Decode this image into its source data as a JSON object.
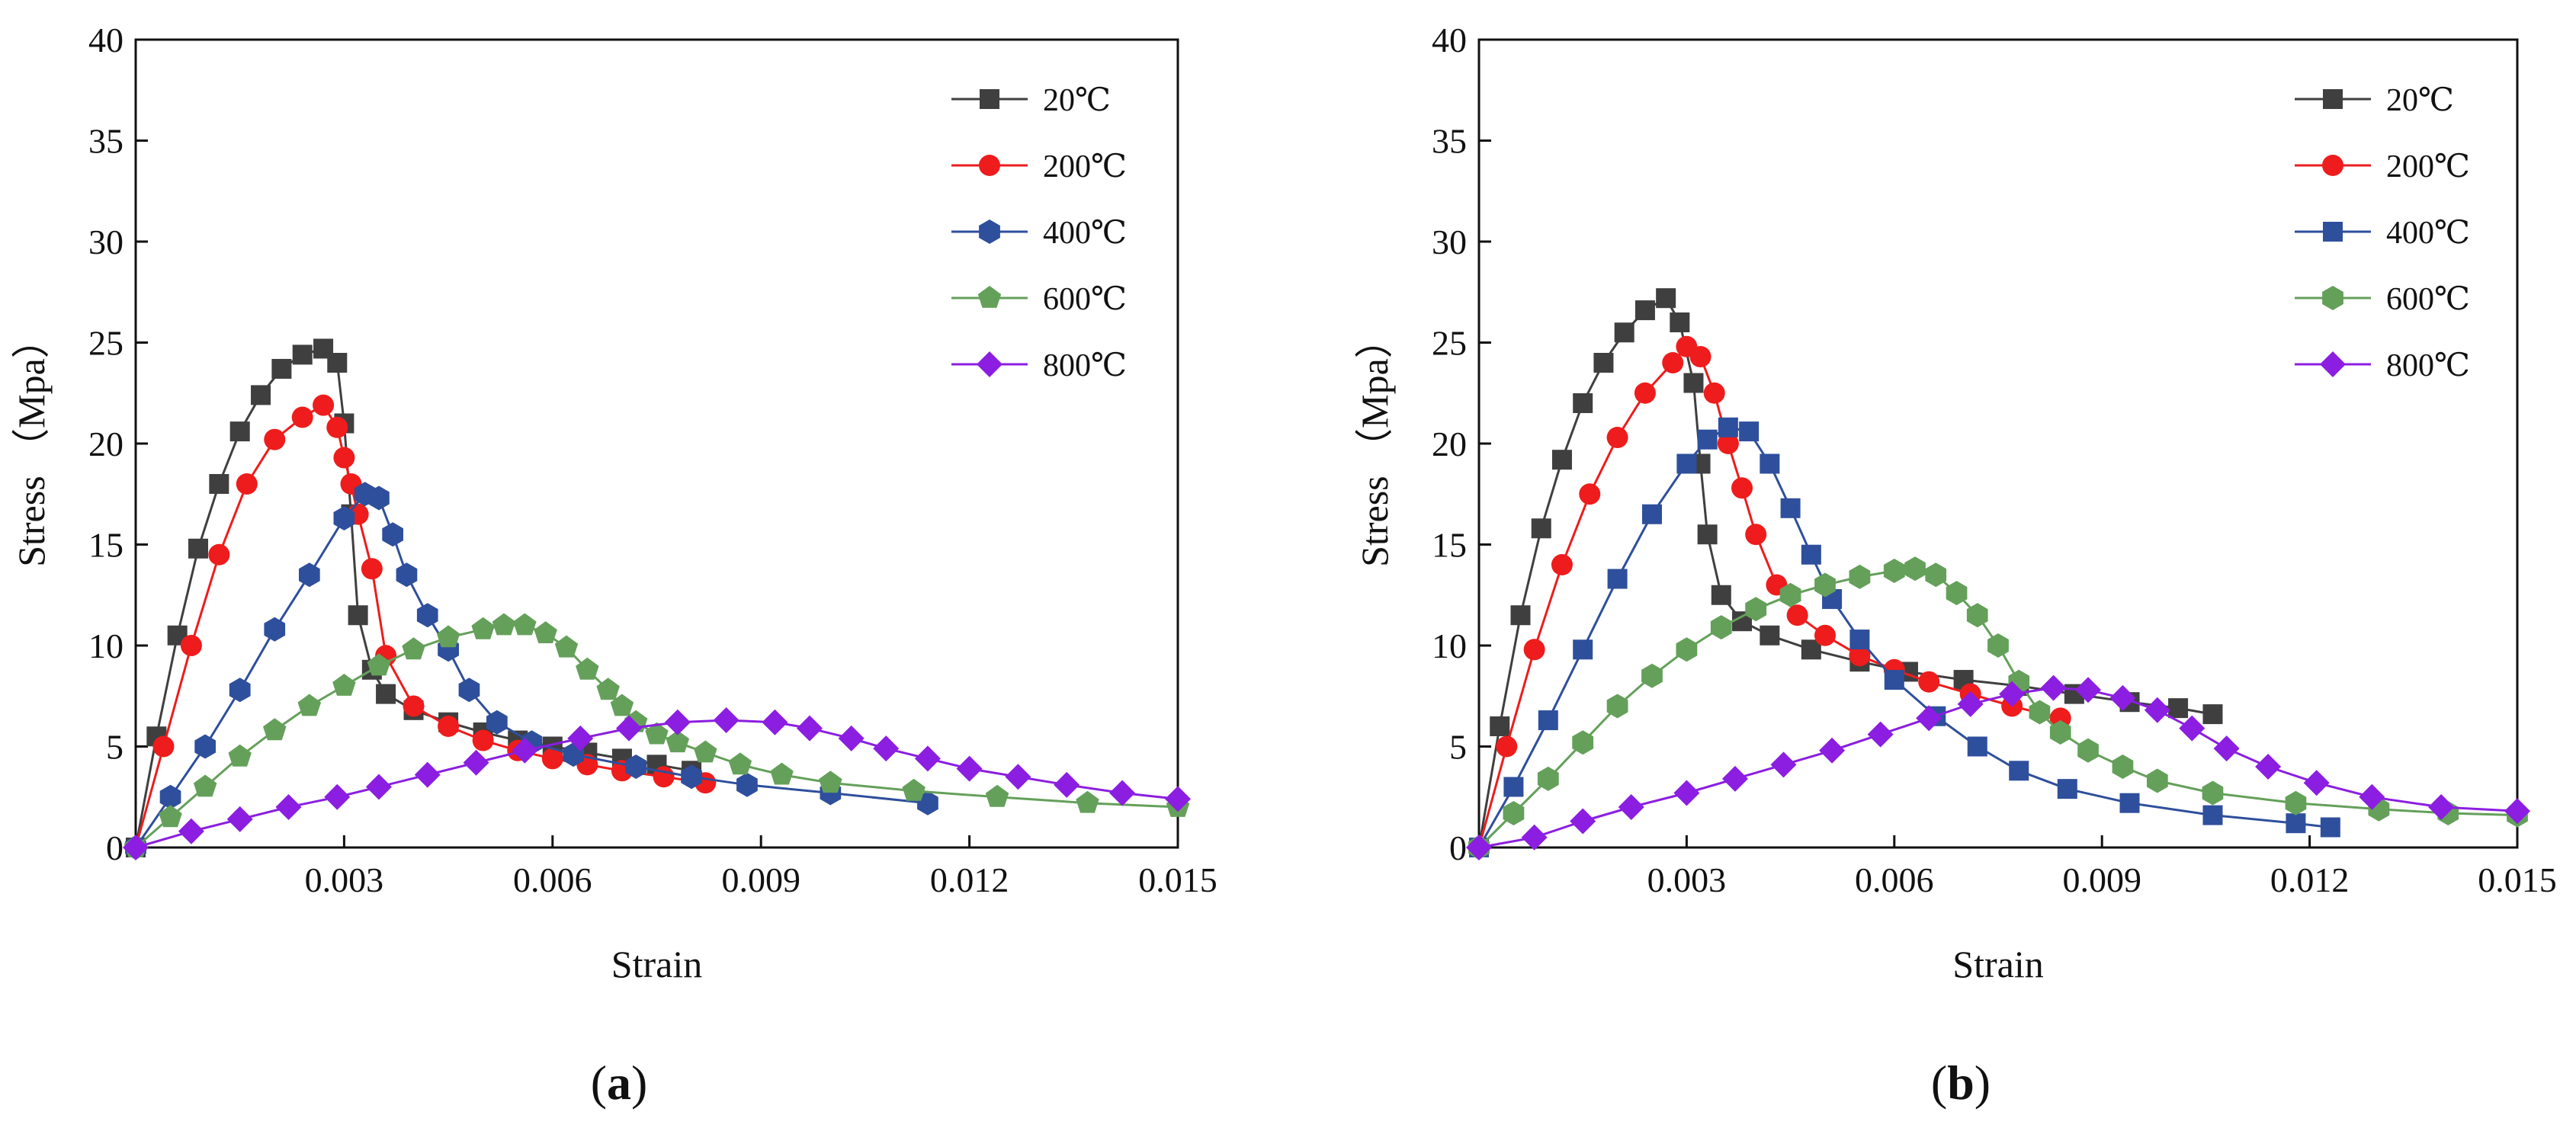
{
  "chart_data": [
    {
      "type": "line",
      "panel_label": "a",
      "xlabel": "Strain",
      "ylabel": "Stress （Mpa）",
      "xlim": [
        0,
        0.015
      ],
      "ylim": [
        0,
        40
      ],
      "x_ticks": [
        "0.003",
        "0.006",
        "0.009",
        "0.012",
        "0.015"
      ],
      "y_ticks": [
        "0",
        "5",
        "10",
        "15",
        "20",
        "25",
        "30",
        "35",
        "40"
      ],
      "grid": false,
      "legend_position": "top-right",
      "series": [
        {
          "name": "20℃",
          "color": "#3f3f3f",
          "marker": "square",
          "x": [
            0,
            0.0003,
            0.0006,
            0.0009,
            0.0012,
            0.0015,
            0.0018,
            0.0021,
            0.0024,
            0.0027,
            0.0029,
            0.003,
            0.0031,
            0.0032,
            0.0034,
            0.0036,
            0.004,
            0.0045,
            0.005,
            0.0055,
            0.006,
            0.0065,
            0.007,
            0.0075,
            0.008
          ],
          "y": [
            0,
            5.5,
            10.5,
            14.8,
            18.0,
            20.6,
            22.4,
            23.7,
            24.4,
            24.7,
            24.0,
            21.0,
            16.5,
            11.5,
            8.8,
            7.6,
            6.8,
            6.2,
            5.7,
            5.3,
            5.0,
            4.7,
            4.4,
            4.1,
            3.8
          ]
        },
        {
          "name": "200℃",
          "color": "#ee1c1c",
          "marker": "circle",
          "x": [
            0,
            0.0004,
            0.0008,
            0.0012,
            0.0016,
            0.002,
            0.0024,
            0.0027,
            0.0029,
            0.003,
            0.0031,
            0.0032,
            0.0034,
            0.0036,
            0.004,
            0.0045,
            0.005,
            0.0055,
            0.006,
            0.0065,
            0.007,
            0.0076,
            0.0082
          ],
          "y": [
            0,
            5.0,
            10.0,
            14.5,
            18.0,
            20.2,
            21.3,
            21.9,
            20.8,
            19.3,
            18.0,
            16.5,
            13.8,
            9.5,
            7.0,
            6.0,
            5.3,
            4.8,
            4.4,
            4.1,
            3.8,
            3.5,
            3.2
          ]
        },
        {
          "name": "400℃",
          "color": "#2e4f9c",
          "marker": "hexagon",
          "x": [
            0,
            0.0005,
            0.001,
            0.0015,
            0.002,
            0.0025,
            0.003,
            0.0033,
            0.0035,
            0.0037,
            0.0039,
            0.0042,
            0.0045,
            0.0048,
            0.0052,
            0.0057,
            0.0063,
            0.0072,
            0.008,
            0.0088,
            0.01,
            0.0114
          ],
          "y": [
            0,
            2.5,
            5.0,
            7.8,
            10.8,
            13.5,
            16.3,
            17.5,
            17.3,
            15.5,
            13.5,
            11.5,
            9.8,
            7.8,
            6.2,
            5.2,
            4.6,
            4.0,
            3.5,
            3.1,
            2.7,
            2.2
          ]
        },
        {
          "name": "600℃",
          "color": "#64a05a",
          "marker": "pentagon",
          "x": [
            0,
            0.0005,
            0.001,
            0.0015,
            0.002,
            0.0025,
            0.003,
            0.0035,
            0.004,
            0.0045,
            0.005,
            0.0053,
            0.0056,
            0.0059,
            0.0062,
            0.0065,
            0.0068,
            0.007,
            0.0072,
            0.0075,
            0.0078,
            0.0082,
            0.0087,
            0.0093,
            0.01,
            0.0112,
            0.0124,
            0.0137,
            0.015
          ],
          "y": [
            0,
            1.5,
            3.0,
            4.5,
            5.8,
            7.0,
            8.0,
            9.0,
            9.8,
            10.4,
            10.8,
            11.0,
            11.0,
            10.6,
            9.9,
            8.8,
            7.8,
            7.0,
            6.2,
            5.6,
            5.2,
            4.7,
            4.1,
            3.6,
            3.2,
            2.8,
            2.5,
            2.2,
            2.0
          ]
        },
        {
          "name": "800℃",
          "color": "#8b1ee0",
          "marker": "diamond",
          "x": [
            0,
            0.0008,
            0.0015,
            0.0022,
            0.0029,
            0.0035,
            0.0042,
            0.0049,
            0.0056,
            0.0064,
            0.0071,
            0.0078,
            0.0085,
            0.0092,
            0.0097,
            0.0103,
            0.0108,
            0.0114,
            0.012,
            0.0127,
            0.0134,
            0.0142,
            0.015
          ],
          "y": [
            0,
            0.8,
            1.4,
            2.0,
            2.5,
            3.0,
            3.6,
            4.2,
            4.8,
            5.4,
            5.9,
            6.2,
            6.3,
            6.2,
            5.9,
            5.4,
            4.9,
            4.4,
            3.9,
            3.5,
            3.1,
            2.7,
            2.4
          ]
        }
      ]
    },
    {
      "type": "line",
      "panel_label": "b",
      "xlabel": "Strain",
      "ylabel": "Stress （Mpa）",
      "xlim": [
        0,
        0.015
      ],
      "ylim": [
        0,
        40
      ],
      "x_ticks": [
        "0.003",
        "0.006",
        "0.009",
        "0.012",
        "0.015"
      ],
      "y_ticks": [
        "0",
        "5",
        "10",
        "15",
        "20",
        "25",
        "30",
        "35",
        "40"
      ],
      "grid": false,
      "legend_position": "top-right",
      "series": [
        {
          "name": "20℃",
          "color": "#3f3f3f",
          "marker": "square",
          "x": [
            0,
            0.0003,
            0.0006,
            0.0009,
            0.0012,
            0.0015,
            0.0018,
            0.0021,
            0.0024,
            0.0027,
            0.0029,
            0.0031,
            0.0032,
            0.0033,
            0.0035,
            0.0038,
            0.0042,
            0.0048,
            0.0055,
            0.0062,
            0.007,
            0.0078,
            0.0086,
            0.0094,
            0.0101,
            0.0106
          ],
          "y": [
            0,
            6.0,
            11.5,
            15.8,
            19.2,
            22.0,
            24.0,
            25.5,
            26.6,
            27.2,
            26.0,
            23.0,
            19.0,
            15.5,
            12.5,
            11.2,
            10.5,
            9.8,
            9.2,
            8.7,
            8.3,
            8.0,
            7.6,
            7.2,
            6.9,
            6.6
          ]
        },
        {
          "name": "200℃",
          "color": "#ee1c1c",
          "marker": "circle",
          "x": [
            0,
            0.0004,
            0.0008,
            0.0012,
            0.0016,
            0.002,
            0.0024,
            0.0028,
            0.003,
            0.0032,
            0.0034,
            0.0036,
            0.0038,
            0.004,
            0.0043,
            0.0046,
            0.005,
            0.0055,
            0.006,
            0.0065,
            0.0071,
            0.0077,
            0.0084
          ],
          "y": [
            0,
            5.0,
            9.8,
            14.0,
            17.5,
            20.3,
            22.5,
            24.0,
            24.8,
            24.3,
            22.5,
            20.0,
            17.8,
            15.5,
            13.0,
            11.5,
            10.5,
            9.5,
            8.8,
            8.2,
            7.6,
            7.0,
            6.4
          ]
        },
        {
          "name": "400℃",
          "color": "#2e4f9c",
          "marker": "square",
          "x": [
            0,
            0.0005,
            0.001,
            0.0015,
            0.002,
            0.0025,
            0.003,
            0.0033,
            0.0036,
            0.0039,
            0.0042,
            0.0045,
            0.0048,
            0.0051,
            0.0055,
            0.006,
            0.0066,
            0.0072,
            0.0078,
            0.0085,
            0.0094,
            0.0106,
            0.0118,
            0.0123
          ],
          "y": [
            0,
            3.0,
            6.3,
            9.8,
            13.3,
            16.5,
            19.0,
            20.2,
            20.8,
            20.6,
            19.0,
            16.8,
            14.5,
            12.3,
            10.3,
            8.3,
            6.5,
            5.0,
            3.8,
            2.9,
            2.2,
            1.6,
            1.2,
            1.0
          ]
        },
        {
          "name": "600℃",
          "color": "#64a05a",
          "marker": "hexagon",
          "x": [
            0,
            0.0005,
            0.001,
            0.0015,
            0.002,
            0.0025,
            0.003,
            0.0035,
            0.004,
            0.0045,
            0.005,
            0.0055,
            0.006,
            0.0063,
            0.0066,
            0.0069,
            0.0072,
            0.0075,
            0.0078,
            0.0081,
            0.0084,
            0.0088,
            0.0093,
            0.0098,
            0.0106,
            0.0118,
            0.013,
            0.014,
            0.015
          ],
          "y": [
            0,
            1.7,
            3.4,
            5.2,
            7.0,
            8.5,
            9.8,
            10.9,
            11.8,
            12.5,
            13.0,
            13.4,
            13.7,
            13.8,
            13.5,
            12.6,
            11.5,
            10.0,
            8.2,
            6.7,
            5.7,
            4.8,
            4.0,
            3.3,
            2.7,
            2.2,
            1.9,
            1.7,
            1.6
          ]
        },
        {
          "name": "800℃",
          "color": "#8b1ee0",
          "marker": "diamond",
          "x": [
            0,
            0.0008,
            0.0015,
            0.0022,
            0.003,
            0.0037,
            0.0044,
            0.0051,
            0.0058,
            0.0065,
            0.0071,
            0.0077,
            0.0083,
            0.0088,
            0.0093,
            0.0098,
            0.0103,
            0.0108,
            0.0114,
            0.0121,
            0.0129,
            0.0139,
            0.015
          ],
          "y": [
            0,
            0.5,
            1.3,
            2.0,
            2.7,
            3.4,
            4.1,
            4.8,
            5.6,
            6.4,
            7.1,
            7.6,
            7.9,
            7.8,
            7.4,
            6.8,
            5.9,
            4.9,
            4.0,
            3.2,
            2.5,
            2.0,
            1.8
          ]
        }
      ]
    }
  ]
}
